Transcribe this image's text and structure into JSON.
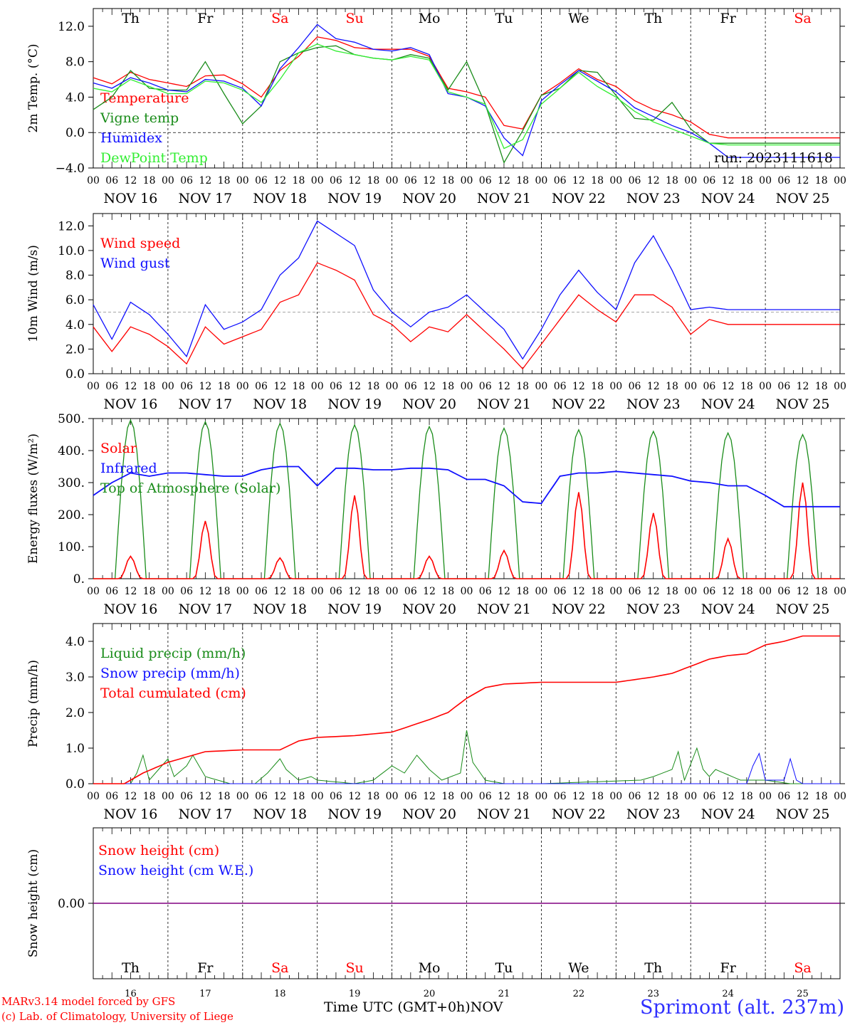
{
  "x_tick_hours": [
    "00",
    "06",
    "12",
    "18"
  ],
  "date_labels": [
    "NOV 16",
    "NOV 17",
    "NOV 18",
    "NOV 19",
    "NOV 20",
    "NOV 21",
    "NOV 22",
    "NOV 23",
    "NOV 24",
    "NOV 25"
  ],
  "weekday_labels": [
    {
      "label": "Th",
      "weekend": false
    },
    {
      "label": "Fr",
      "weekend": false
    },
    {
      "label": "Sa",
      "weekend": true
    },
    {
      "label": "Su",
      "weekend": true
    },
    {
      "label": "Mo",
      "weekend": false
    },
    {
      "label": "Tu",
      "weekend": false
    },
    {
      "label": "We",
      "weekend": false
    },
    {
      "label": "Th",
      "weekend": false
    },
    {
      "label": "Fr",
      "weekend": false
    },
    {
      "label": "Sa",
      "weekend": true
    }
  ],
  "bottom_day_numbers": [
    "16",
    "17",
    "18",
    "19",
    "20",
    "21",
    "22",
    "23",
    "24",
    "25"
  ],
  "footer": {
    "line1": "MARv3.14 model forced by GFS",
    "line2": "(c) Lab. of Climatology, University of Liege",
    "axis_title": "Time UTC (GMT+0h)",
    "month": "NOV",
    "station": "Sprimont (alt. 237m)"
  },
  "colors": {
    "red": "#ff0000",
    "green": "#1a8c1a",
    "blue": "#1010ff",
    "lightgreen": "#33ee33",
    "purple": "#800080",
    "weekend": "#ff0000"
  },
  "chart_data": [
    {
      "type": "line",
      "ylabel": "2m Temp. (°C)",
      "ylim": [
        -4,
        14
      ],
      "yticks": [
        -4,
        0,
        4,
        8,
        12
      ],
      "ytick_labels": [
        "−4.0",
        "0.0",
        "4.0",
        "8.0",
        "12.0"
      ],
      "refline": 0,
      "annotation": "run: 2023111618",
      "hours": [
        0,
        6,
        12,
        18,
        24,
        30,
        36,
        42,
        48,
        54,
        60,
        66,
        72,
        78,
        84,
        90,
        96,
        102,
        108,
        114,
        120,
        126,
        132,
        138,
        144,
        150,
        156,
        162,
        168,
        174,
        180,
        186,
        192,
        198,
        204,
        210,
        216,
        222,
        228,
        234,
        240
      ],
      "series": [
        {
          "name": "Temperature",
          "color": "red",
          "values": [
            6.2,
            5.5,
            6.8,
            6.0,
            5.6,
            5.2,
            6.4,
            6.5,
            5.5,
            4.0,
            7.0,
            8.6,
            10.8,
            10.4,
            9.6,
            9.4,
            9.4,
            9.4,
            8.6,
            5.0,
            4.6,
            4.0,
            0.8,
            0.4,
            4.2,
            5.6,
            7.2,
            6.0,
            5.2,
            3.6,
            2.6,
            2.0,
            1.2,
            -0.2,
            -0.6,
            -0.6,
            -0.6,
            -0.6,
            -0.6,
            -0.6,
            -0.6
          ]
        },
        {
          "name": "Vigne temp",
          "color": "green",
          "values": [
            2.6,
            4.0,
            7.0,
            5.0,
            4.8,
            4.8,
            8.0,
            4.4,
            1.0,
            3.0,
            8.0,
            9.0,
            9.6,
            9.8,
            8.8,
            8.4,
            8.2,
            8.8,
            8.4,
            4.8,
            8.0,
            3.2,
            -3.4,
            0.2,
            4.2,
            5.0,
            7.0,
            6.8,
            4.2,
            1.6,
            1.4,
            3.4,
            0.4,
            -1.2,
            -1.2,
            -1.2,
            -1.2,
            -1.2,
            -1.2,
            -1.2,
            -1.2
          ]
        },
        {
          "name": "Humidex",
          "color": "blue",
          "values": [
            5.6,
            5.0,
            6.2,
            5.6,
            4.8,
            4.6,
            6.0,
            5.8,
            5.0,
            3.0,
            7.2,
            9.6,
            12.2,
            10.6,
            10.2,
            9.4,
            9.2,
            9.6,
            8.8,
            4.4,
            4.0,
            3.0,
            -0.6,
            -2.6,
            3.6,
            5.4,
            7.0,
            5.8,
            4.6,
            2.8,
            1.8,
            0.8,
            0.0,
            -1.2,
            -2.8,
            -2.8,
            -2.8,
            -2.8,
            -2.8,
            -2.8,
            -2.8
          ]
        },
        {
          "name": "DewPoint Temp",
          "color": "lightgreen",
          "values": [
            5.0,
            4.6,
            6.0,
            5.2,
            4.4,
            4.4,
            5.8,
            5.6,
            4.8,
            3.4,
            6.0,
            9.0,
            10.0,
            9.2,
            8.8,
            8.4,
            8.2,
            8.6,
            8.2,
            4.6,
            4.0,
            3.2,
            -1.8,
            -0.8,
            3.2,
            5.0,
            6.8,
            5.2,
            4.0,
            2.4,
            1.2,
            0.4,
            -0.4,
            -1.2,
            -1.4,
            -1.4,
            -1.4,
            -1.4,
            -1.4,
            -1.4,
            -1.4
          ]
        }
      ]
    },
    {
      "type": "line",
      "ylabel": "10m Wind (m/s)",
      "ylim": [
        0,
        13
      ],
      "yticks": [
        0,
        2,
        4,
        6,
        8,
        10,
        12
      ],
      "ytick_labels": [
        "0.0",
        "2.0",
        "4.0",
        "6.0",
        "8.0",
        "10.0",
        "12.0"
      ],
      "refline": 5,
      "hours": [
        0,
        6,
        12,
        18,
        24,
        30,
        36,
        42,
        48,
        54,
        60,
        66,
        72,
        78,
        84,
        90,
        96,
        102,
        108,
        114,
        120,
        126,
        132,
        138,
        144,
        150,
        156,
        162,
        168,
        174,
        180,
        186,
        192,
        198,
        204,
        210,
        216,
        222,
        228,
        234,
        240
      ],
      "series": [
        {
          "name": "Wind speed",
          "color": "red",
          "values": [
            3.8,
            1.8,
            3.8,
            3.2,
            2.2,
            0.8,
            3.8,
            2.4,
            3.0,
            3.6,
            5.8,
            6.4,
            9.0,
            8.4,
            7.6,
            4.8,
            4.0,
            2.6,
            3.8,
            3.4,
            4.8,
            3.4,
            2.0,
            0.4,
            2.4,
            4.4,
            6.4,
            5.2,
            4.2,
            6.4,
            6.4,
            5.4,
            3.2,
            4.4,
            4.0,
            4.0,
            4.0,
            4.0,
            4.0,
            4.0,
            4.0
          ]
        },
        {
          "name": "Wind gust",
          "color": "blue",
          "values": [
            5.6,
            2.8,
            5.8,
            4.8,
            3.2,
            1.4,
            5.6,
            3.6,
            4.2,
            5.2,
            8.0,
            9.4,
            12.4,
            11.4,
            10.4,
            6.8,
            5.0,
            3.8,
            5.0,
            5.4,
            6.4,
            5.0,
            3.6,
            1.2,
            3.6,
            6.4,
            8.4,
            6.6,
            5.2,
            9.0,
            11.2,
            8.4,
            5.2,
            5.4,
            5.2,
            5.2,
            5.2,
            5.2,
            5.2,
            5.2,
            5.2
          ]
        }
      ]
    },
    {
      "type": "line",
      "ylabel": "Energy fluxes (W/m²)",
      "ylim": [
        0,
        500
      ],
      "yticks": [
        0,
        100,
        200,
        300,
        400,
        500
      ],
      "ytick_labels": [
        "0.",
        "100.",
        "200.",
        "300.",
        "400.",
        "500."
      ],
      "series": [
        {
          "name": "Solar",
          "color": "red",
          "daily_peak": [
            70,
            180,
            65,
            260,
            70,
            88,
            270,
            205,
            125,
            300
          ]
        },
        {
          "name": "Infrared",
          "color": "blue",
          "hours": [
            0,
            6,
            12,
            18,
            24,
            30,
            36,
            42,
            48,
            54,
            60,
            66,
            72,
            78,
            84,
            90,
            96,
            102,
            108,
            114,
            120,
            126,
            132,
            138,
            144,
            150,
            156,
            162,
            168,
            174,
            180,
            186,
            192,
            198,
            204,
            210,
            216,
            222,
            228,
            234,
            240
          ],
          "values": [
            260,
            300,
            330,
            320,
            330,
            330,
            325,
            320,
            320,
            340,
            350,
            350,
            290,
            345,
            345,
            340,
            340,
            345,
            345,
            340,
            310,
            310,
            290,
            240,
            235,
            320,
            330,
            330,
            335,
            330,
            325,
            320,
            305,
            300,
            290,
            290,
            260,
            225,
            225,
            225,
            225
          ]
        },
        {
          "name": "Top of Atmosphere (Solar)",
          "color": "green",
          "daily_peak": [
            495,
            490,
            485,
            480,
            475,
            470,
            465,
            460,
            455,
            450
          ]
        }
      ]
    },
    {
      "type": "line",
      "ylabel": "Precip (mm/h)",
      "ylim": [
        0,
        4.5
      ],
      "yticks": [
        0,
        1,
        2,
        3,
        4
      ],
      "ytick_labels": [
        "0.0",
        "1.0",
        "2.0",
        "3.0",
        "4.0"
      ],
      "series": [
        {
          "name": "Liquid precip (mm/h)",
          "color": "green",
          "hours": [
            0,
            12,
            14,
            16,
            18,
            22,
            24,
            26,
            30,
            32,
            36,
            40,
            44,
            48,
            52,
            56,
            60,
            62,
            66,
            70,
            72,
            84,
            90,
            96,
            100,
            104,
            108,
            112,
            118,
            120,
            122,
            126,
            132,
            144,
            176,
            180,
            186,
            188,
            190,
            194,
            196,
            198,
            200,
            208,
            216,
            224,
            240
          ],
          "values": [
            0,
            0,
            0.3,
            0.8,
            0.1,
            0.5,
            0.7,
            0.2,
            0.5,
            0.8,
            0.2,
            0.1,
            0,
            0,
            0,
            0.3,
            0.7,
            0.4,
            0.1,
            0.2,
            0.1,
            0,
            0.1,
            0.5,
            0.3,
            0.8,
            0.4,
            0.1,
            0.3,
            1.5,
            0.6,
            0.1,
            0,
            0,
            0.1,
            0.2,
            0.4,
            0.9,
            0.1,
            1.0,
            0.4,
            0.2,
            0.4,
            0.1,
            0.1,
            0,
            0
          ]
        },
        {
          "name": "Snow precip (mm/h)",
          "color": "blue",
          "hours": [
            0,
            210,
            212,
            214,
            216,
            222,
            224,
            226,
            228,
            240
          ],
          "values": [
            0,
            0,
            0.5,
            0.85,
            0.1,
            0.1,
            0.7,
            0.1,
            0,
            0
          ]
        },
        {
          "name": "Total cumulated (cm)",
          "color": "red",
          "hours": [
            0,
            10,
            16,
            24,
            36,
            48,
            60,
            66,
            72,
            84,
            96,
            108,
            114,
            120,
            126,
            132,
            144,
            156,
            168,
            176,
            180,
            186,
            192,
            198,
            204,
            210,
            216,
            222,
            228,
            240
          ],
          "values": [
            0,
            0,
            0.3,
            0.6,
            0.9,
            0.95,
            0.95,
            1.2,
            1.3,
            1.35,
            1.45,
            1.8,
            2.0,
            2.4,
            2.7,
            2.8,
            2.85,
            2.85,
            2.85,
            2.95,
            3.0,
            3.1,
            3.3,
            3.5,
            3.6,
            3.65,
            3.9,
            4.0,
            4.15,
            4.15
          ]
        }
      ]
    },
    {
      "type": "line",
      "ylabel": "Snow height (cm)",
      "ylim": [
        -1,
        1
      ],
      "yticks": [
        0
      ],
      "ytick_labels": [
        "0.00"
      ],
      "series": [
        {
          "name": "Snow height (cm)",
          "color": "red",
          "values": [
            0
          ]
        },
        {
          "name": "Snow height (cm W.E.)",
          "color": "blue",
          "values": [
            0
          ]
        }
      ]
    }
  ]
}
